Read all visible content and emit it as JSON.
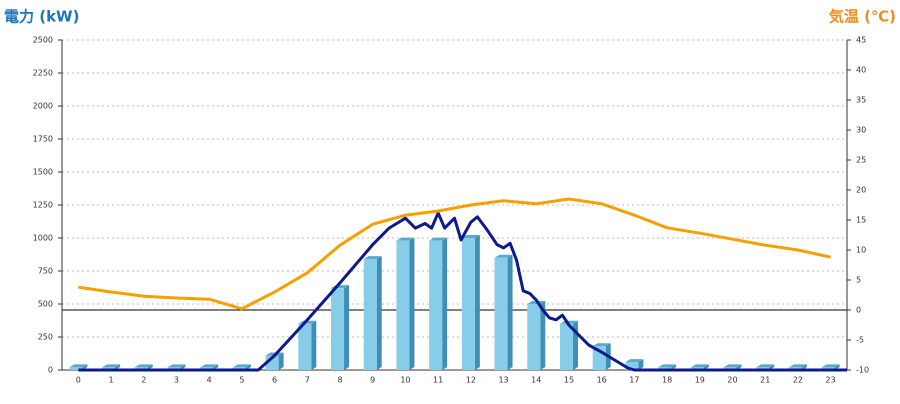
{
  "chart_data": {
    "type": "bar",
    "y_label": "電力 (kW)",
    "y2_label": "気温 (℃)",
    "categories": [
      "0",
      "1",
      "2",
      "3",
      "4",
      "5",
      "6",
      "7",
      "8",
      "9",
      "10",
      "11",
      "12",
      "13",
      "14",
      "15",
      "16",
      "17",
      "18",
      "19",
      "20",
      "21",
      "22",
      "23"
    ],
    "ylim": [
      0,
      2500
    ],
    "yticks": [
      0,
      250,
      500,
      750,
      1000,
      1250,
      1500,
      1750,
      2000,
      2250,
      2500
    ],
    "y2lim": [
      -10,
      45
    ],
    "y2ticks": [
      -10,
      -5,
      0,
      5,
      10,
      15,
      20,
      25,
      30,
      35,
      40,
      45
    ],
    "grid": true,
    "y2_zero_line": true,
    "series": [
      {
        "type": "bar",
        "color": "#87cdea",
        "values": [
          20,
          20,
          20,
          20,
          20,
          20,
          110,
          350,
          620,
          840,
          980,
          980,
          1000,
          850,
          500,
          350,
          180,
          60,
          20,
          20,
          20,
          20,
          20,
          20
        ]
      },
      {
        "type": "line",
        "color": "#0d1a8c",
        "x": [
          0,
          5.5,
          6,
          7,
          8,
          9,
          9.5,
          10,
          10.3,
          10.6,
          10.8,
          11,
          11.2,
          11.5,
          11.7,
          12,
          12.2,
          12.5,
          12.8,
          13,
          13.2,
          13.4,
          13.6,
          13.8,
          14,
          14.2,
          14.4,
          14.6,
          14.8,
          15,
          15.3,
          15.6,
          16,
          16.4,
          16.8,
          17,
          23.5
        ],
        "values": [
          0,
          0,
          110,
          380,
          660,
          950,
          1075,
          1150,
          1075,
          1110,
          1075,
          1190,
          1075,
          1150,
          985,
          1120,
          1160,
          1060,
          950,
          925,
          960,
          830,
          600,
          580,
          530,
          455,
          395,
          380,
          415,
          340,
          265,
          190,
          135,
          75,
          15,
          0,
          0
        ]
      },
      {
        "type": "line",
        "axis": "y2",
        "color": "#f5a000",
        "values": [
          3.8,
          3,
          2.3,
          2,
          1.8,
          0.2,
          3,
          6.2,
          10.8,
          14.3,
          15.8,
          16.5,
          17.5,
          18.2,
          17.7,
          18.5,
          17.7,
          15.8,
          13.7,
          12.8,
          11.8,
          10.8,
          10,
          8.8
        ]
      }
    ]
  }
}
